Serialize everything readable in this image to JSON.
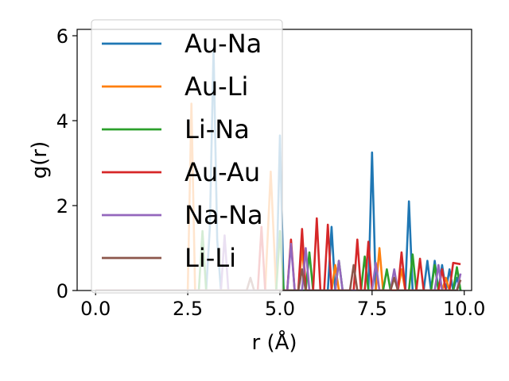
{
  "chart_data": {
    "type": "line",
    "xlabel": "r (Å)",
    "ylabel": "g(r)",
    "xlim": [
      -0.5,
      10.2
    ],
    "ylim": [
      0,
      6.15
    ],
    "xticks": [
      0.0,
      2.5,
      5.0,
      7.5,
      10.0
    ],
    "xtick_labels": [
      "0.0",
      "2.5",
      "5.0",
      "7.5",
      "10.0"
    ],
    "yticks": [
      0,
      2,
      4,
      6
    ],
    "ytick_labels": [
      "0",
      "2",
      "4",
      "6"
    ],
    "grid": false,
    "legend_position": "upper-left",
    "series": [
      {
        "name": "Au-Na",
        "color": "#1f77b4",
        "points": [
          [
            0,
            0
          ],
          [
            3.0,
            0
          ],
          [
            3.1,
            1.5
          ],
          [
            3.2,
            5.7
          ],
          [
            3.3,
            1.2
          ],
          [
            3.4,
            0
          ],
          [
            4.9,
            0
          ],
          [
            5.0,
            3.65
          ],
          [
            5.1,
            0
          ],
          [
            6.3,
            0
          ],
          [
            6.4,
            1.5
          ],
          [
            6.5,
            0
          ],
          [
            7.4,
            0
          ],
          [
            7.5,
            3.25
          ],
          [
            7.6,
            0
          ],
          [
            8.4,
            0
          ],
          [
            8.5,
            2.1
          ],
          [
            8.6,
            0
          ],
          [
            8.9,
            0
          ],
          [
            9.0,
            0.7
          ],
          [
            9.1,
            0
          ],
          [
            9.2,
            0.7
          ],
          [
            9.3,
            0
          ],
          [
            9.4,
            0.6
          ],
          [
            9.5,
            0
          ],
          [
            9.6,
            0.5
          ],
          [
            9.7,
            0
          ],
          [
            9.8,
            0.3
          ],
          [
            9.9,
            0
          ]
        ]
      },
      {
        "name": "Au-Li",
        "color": "#ff7f0e",
        "points": [
          [
            0,
            0
          ],
          [
            2.5,
            0
          ],
          [
            2.6,
            4.4
          ],
          [
            2.7,
            0
          ],
          [
            4.6,
            0
          ],
          [
            4.75,
            2.8
          ],
          [
            4.9,
            0
          ],
          [
            5.5,
            0
          ],
          [
            5.6,
            1.0
          ],
          [
            5.7,
            0
          ],
          [
            6.4,
            0
          ],
          [
            6.5,
            0.6
          ],
          [
            6.6,
            0
          ],
          [
            7.6,
            0
          ],
          [
            7.7,
            1.0
          ],
          [
            7.8,
            0
          ],
          [
            8.2,
            0
          ],
          [
            8.3,
            0.5
          ],
          [
            8.4,
            0
          ],
          [
            9.4,
            0
          ],
          [
            9.5,
            0.3
          ],
          [
            9.6,
            0
          ]
        ]
      },
      {
        "name": "Li-Na",
        "color": "#2ca02c",
        "points": [
          [
            0,
            0
          ],
          [
            2.8,
            0
          ],
          [
            2.9,
            1.4
          ],
          [
            3.0,
            0
          ],
          [
            4.9,
            0
          ],
          [
            5.0,
            1.4
          ],
          [
            5.1,
            0
          ],
          [
            5.7,
            0
          ],
          [
            5.8,
            0.9
          ],
          [
            5.9,
            0
          ],
          [
            6.5,
            0
          ],
          [
            6.6,
            0.7
          ],
          [
            6.7,
            0
          ],
          [
            7.2,
            0
          ],
          [
            7.3,
            0.8
          ],
          [
            7.4,
            0
          ],
          [
            7.8,
            0
          ],
          [
            7.9,
            0.5
          ],
          [
            8.0,
            0
          ],
          [
            8.5,
            0
          ],
          [
            8.6,
            0.85
          ],
          [
            8.7,
            0
          ],
          [
            9.1,
            0
          ],
          [
            9.2,
            0.6
          ],
          [
            9.3,
            0
          ],
          [
            9.7,
            0
          ],
          [
            9.8,
            0.55
          ],
          [
            9.9,
            0
          ]
        ]
      },
      {
        "name": "Au-Au",
        "color": "#d62728",
        "points": [
          [
            0,
            0
          ],
          [
            4.4,
            0
          ],
          [
            4.5,
            1.5
          ],
          [
            4.6,
            0
          ],
          [
            5.2,
            0
          ],
          [
            5.3,
            1.2
          ],
          [
            5.4,
            0
          ],
          [
            5.5,
            0
          ],
          [
            5.6,
            1.45
          ],
          [
            5.7,
            0
          ],
          [
            5.9,
            0
          ],
          [
            6.0,
            1.7
          ],
          [
            6.1,
            0
          ],
          [
            6.2,
            0
          ],
          [
            6.3,
            1.55
          ],
          [
            6.4,
            0
          ],
          [
            7.0,
            0
          ],
          [
            7.1,
            1.2
          ],
          [
            7.2,
            0
          ],
          [
            7.3,
            0
          ],
          [
            7.4,
            1.15
          ],
          [
            7.5,
            0
          ],
          [
            8.2,
            0
          ],
          [
            8.3,
            0.9
          ],
          [
            8.4,
            0
          ],
          [
            8.7,
            0
          ],
          [
            8.8,
            0.75
          ],
          [
            8.9,
            0
          ],
          [
            9.3,
            0
          ],
          [
            9.4,
            0.5
          ],
          [
            9.5,
            0
          ],
          [
            9.6,
            0
          ],
          [
            9.7,
            0.65
          ],
          [
            9.9,
            0.62
          ]
        ]
      },
      {
        "name": "Na-Na",
        "color": "#9467bd",
        "points": [
          [
            0,
            0
          ],
          [
            3.4,
            0
          ],
          [
            3.5,
            1.3
          ],
          [
            3.6,
            0
          ],
          [
            5.2,
            0
          ],
          [
            5.3,
            1.1
          ],
          [
            5.4,
            0
          ],
          [
            5.6,
            0
          ],
          [
            5.7,
            1.0
          ],
          [
            5.8,
            0
          ],
          [
            6.5,
            0
          ],
          [
            6.6,
            0.7
          ],
          [
            6.7,
            0
          ],
          [
            7.5,
            0
          ],
          [
            7.6,
            0.65
          ],
          [
            7.7,
            0
          ],
          [
            8.0,
            0
          ],
          [
            8.1,
            0.5
          ],
          [
            8.2,
            0
          ],
          [
            9.2,
            0
          ],
          [
            9.3,
            0.6
          ],
          [
            9.4,
            0
          ],
          [
            9.8,
            0
          ],
          [
            9.9,
            0.4
          ]
        ]
      },
      {
        "name": "Li-Li",
        "color": "#8c564b",
        "points": [
          [
            0,
            0
          ],
          [
            4.1,
            0
          ],
          [
            4.2,
            0.3
          ],
          [
            4.3,
            0
          ],
          [
            5.5,
            0
          ],
          [
            5.6,
            0.5
          ],
          [
            5.7,
            0
          ],
          [
            6.9,
            0
          ],
          [
            7.0,
            0.6
          ],
          [
            7.1,
            0
          ],
          [
            8.0,
            0
          ],
          [
            8.1,
            0.3
          ],
          [
            8.2,
            0
          ],
          [
            9.8,
            0
          ],
          [
            9.9,
            0.25
          ]
        ]
      }
    ]
  }
}
